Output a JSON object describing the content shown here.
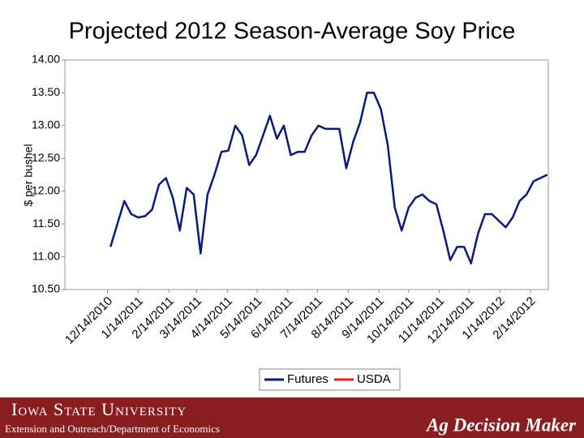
{
  "chart_data": {
    "type": "line",
    "title": "Projected 2012 Season-Average Soy Price",
    "y_label": "$ per bushel",
    "x": [
      "12/17/2010",
      "12/24/2010",
      "12/31/2010",
      "1/7/2011",
      "1/14/2011",
      "1/21/2011",
      "1/28/2011",
      "2/4/2011",
      "2/11/2011",
      "2/18/2011",
      "2/25/2011",
      "3/4/2011",
      "3/11/2011",
      "3/18/2011",
      "3/25/2011",
      "4/1/2011",
      "4/8/2011",
      "4/15/2011",
      "4/22/2011",
      "4/29/2011",
      "5/6/2011",
      "5/13/2011",
      "5/20/2011",
      "5/27/2011",
      "6/3/2011",
      "6/10/2011",
      "6/17/2011",
      "6/24/2011",
      "7/1/2011",
      "7/8/2011",
      "7/15/2011",
      "7/22/2011",
      "7/29/2011",
      "8/5/2011",
      "8/12/2011",
      "8/19/2011",
      "8/26/2011",
      "9/2/2011",
      "9/9/2011",
      "9/16/2011",
      "9/23/2011",
      "9/30/2011",
      "10/7/2011",
      "10/14/2011",
      "10/21/2011",
      "10/28/2011",
      "11/4/2011",
      "11/11/2011",
      "11/18/2011",
      "11/25/2011",
      "12/2/2011",
      "12/9/2011",
      "12/16/2011",
      "12/23/2011",
      "12/30/2011",
      "1/6/2012",
      "1/13/2012",
      "1/20/2012",
      "1/27/2012",
      "2/3/2012",
      "2/10/2012",
      "2/17/2012",
      "2/24/2012",
      "3/2/2012"
    ],
    "series": [
      {
        "name": "Futures",
        "color": "#0b1a7a",
        "values": [
          11.15,
          11.5,
          11.85,
          11.65,
          11.6,
          11.62,
          11.72,
          12.1,
          12.2,
          11.9,
          11.4,
          12.05,
          11.95,
          11.05,
          11.95,
          12.25,
          12.6,
          12.62,
          13.0,
          12.85,
          12.4,
          12.55,
          12.85,
          13.15,
          12.8,
          13.0,
          12.55,
          12.6,
          12.6,
          12.85,
          13.0,
          12.95,
          12.95,
          12.95,
          12.35,
          12.75,
          13.05,
          13.5,
          13.5,
          13.25,
          12.7,
          11.75,
          11.4,
          11.75,
          11.9,
          11.95,
          11.85,
          11.8,
          11.4,
          10.95,
          11.15,
          11.15,
          10.9,
          11.35,
          11.65,
          11.65,
          11.55,
          11.45,
          11.6,
          11.85,
          11.95,
          12.15,
          12.2,
          12.25
        ]
      },
      {
        "name": "USDA",
        "color": "#e0201b",
        "values": [
          null,
          null,
          null,
          null,
          null,
          null,
          null,
          null,
          null,
          null,
          null,
          null,
          null,
          null,
          null,
          null,
          null,
          null,
          null,
          null,
          null,
          null,
          null,
          null,
          null,
          null,
          null,
          null,
          null,
          null,
          null,
          null,
          null,
          null,
          null,
          null,
          null,
          null,
          null,
          null,
          null,
          null,
          null,
          null,
          null,
          null,
          null,
          null,
          null,
          null,
          null,
          null,
          null,
          null,
          null,
          null,
          null,
          null,
          null,
          null,
          null,
          null,
          null,
          null
        ]
      }
    ],
    "xlim": [
      "11/1/2010",
      "3/3/2012"
    ],
    "xticks": [
      "12/14/2010",
      "1/14/2011",
      "2/14/2011",
      "3/14/2011",
      "4/14/2011",
      "5/14/2011",
      "6/14/2011",
      "7/14/2011",
      "8/14/2011",
      "9/14/2011",
      "10/14/2011",
      "11/14/2011",
      "12/14/2011",
      "1/14/2012",
      "2/14/2012"
    ],
    "ylim": [
      10.5,
      14
    ],
    "yticks": [
      {
        "value": 10.5,
        "label": "10.50"
      },
      {
        "value": 11,
        "label": "11.00"
      },
      {
        "value": 11.5,
        "label": "11.50"
      },
      {
        "value": 12,
        "label": "12.00"
      },
      {
        "value": 12.5,
        "label": "12.50"
      },
      {
        "value": 13,
        "label": "13.00"
      },
      {
        "value": 13.5,
        "label": "13.50"
      },
      {
        "value": 14,
        "label": "14.00"
      }
    ],
    "legend": "bottom"
  },
  "footer": {
    "university": "Iowa State University",
    "department": "Extension and Outreach/Department of Economics",
    "brand": "Ag Decision Maker"
  }
}
